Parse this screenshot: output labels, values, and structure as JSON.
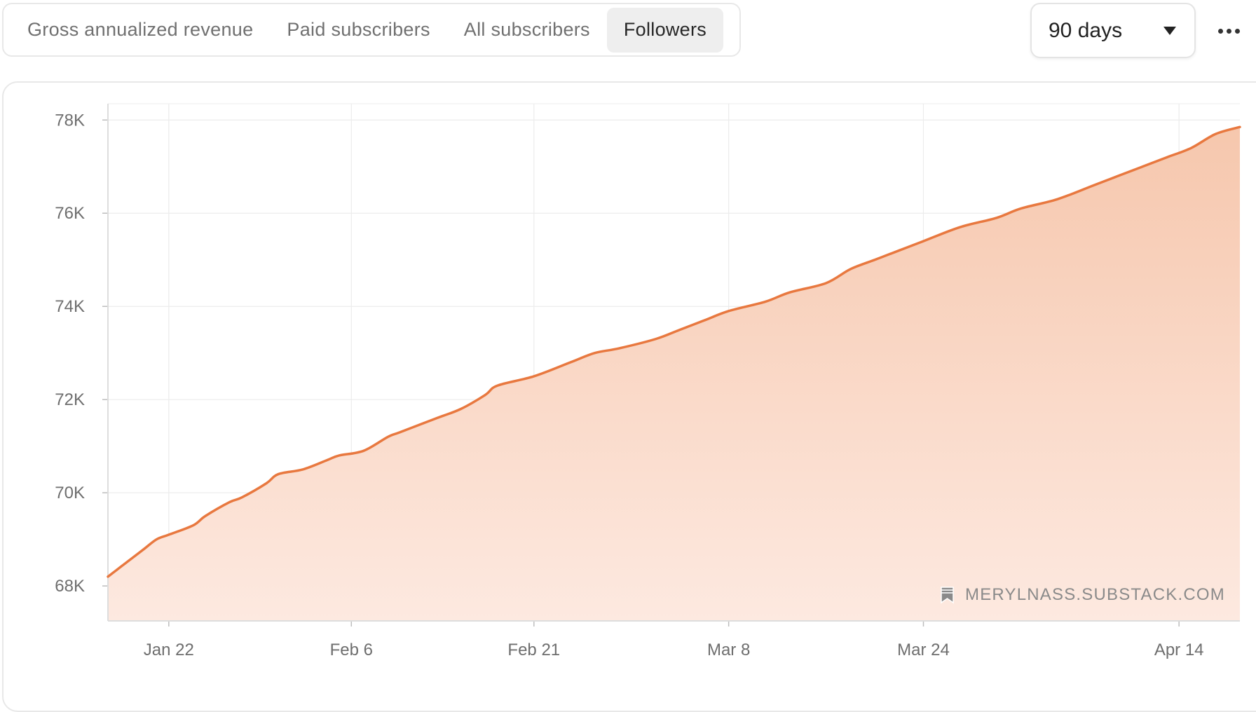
{
  "tabs": [
    {
      "label": "Gross annualized revenue",
      "active": false
    },
    {
      "label": "Paid subscribers",
      "active": false
    },
    {
      "label": "All subscribers",
      "active": false
    },
    {
      "label": "Followers",
      "active": true
    }
  ],
  "range_select": {
    "value": "90 days"
  },
  "more_menu": {
    "icon": "more-horizontal-icon"
  },
  "colors": {
    "line": "#e8783f",
    "fill_top": "#f6c7ad",
    "fill_bottom": "#fde9e0",
    "grid": "#ececec",
    "axis": "#dddddd"
  },
  "watermark": {
    "text": "MERYLNASS.SUBSTACK.COM",
    "icon": "substack-bookmark-icon"
  },
  "chart_data": {
    "type": "area",
    "title": "",
    "xlabel": "",
    "ylabel": "",
    "grid": true,
    "ylim": [
      67250,
      78350
    ],
    "xlim": [
      "2024-01-17",
      "2024-04-19"
    ],
    "y_ticks": [
      68000,
      70000,
      72000,
      74000,
      76000,
      78000
    ],
    "y_tick_labels": [
      "68K",
      "70K",
      "72K",
      "74K",
      "76K",
      "78K"
    ],
    "x_ticks": [
      "2024-01-22",
      "2024-02-06",
      "2024-02-21",
      "2024-03-08",
      "2024-03-24",
      "2024-04-14"
    ],
    "x_tick_labels": [
      "Jan 22",
      "Feb 6",
      "Feb 21",
      "Mar 8",
      "Mar 24",
      "Apr 14"
    ],
    "series": [
      {
        "x": [
          "2024-01-17",
          "2024-01-18",
          "2024-01-19",
          "2024-01-20",
          "2024-01-21",
          "2024-01-22",
          "2024-01-24",
          "2024-01-25",
          "2024-01-27",
          "2024-01-28",
          "2024-01-30",
          "2024-01-31",
          "2024-02-02",
          "2024-02-04",
          "2024-02-05",
          "2024-02-07",
          "2024-02-09",
          "2024-02-10",
          "2024-02-13",
          "2024-02-15",
          "2024-02-17",
          "2024-02-18",
          "2024-02-21",
          "2024-02-24",
          "2024-02-26",
          "2024-02-28",
          "2024-03-02",
          "2024-03-04",
          "2024-03-06",
          "2024-03-08",
          "2024-03-11",
          "2024-03-13",
          "2024-03-16",
          "2024-03-18",
          "2024-03-20",
          "2024-03-22",
          "2024-03-24",
          "2024-03-27",
          "2024-03-30",
          "2024-04-01",
          "2024-04-04",
          "2024-04-07",
          "2024-04-09",
          "2024-04-11",
          "2024-04-13",
          "2024-04-15",
          "2024-04-17",
          "2024-04-19"
        ],
        "values": [
          68200,
          68400,
          68600,
          68800,
          69000,
          69100,
          69300,
          69500,
          69800,
          69900,
          70200,
          70400,
          70500,
          70700,
          70800,
          70900,
          71200,
          71300,
          71600,
          71800,
          72100,
          72300,
          72500,
          72800,
          73000,
          73100,
          73300,
          73500,
          73700,
          73900,
          74100,
          74300,
          74500,
          74800,
          75000,
          75200,
          75400,
          75700,
          75900,
          76100,
          76300,
          76600,
          76800,
          77000,
          77200,
          77400,
          77700,
          77850
        ]
      }
    ]
  }
}
